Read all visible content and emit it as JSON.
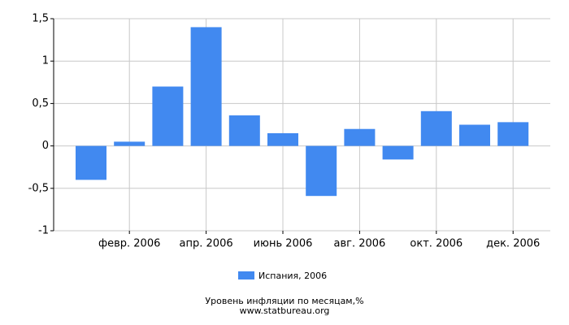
{
  "chart_data": {
    "type": "bar",
    "categories": [
      null,
      "февр. 2006",
      null,
      "апр. 2006",
      null,
      "июнь 2006",
      null,
      "авг. 2006",
      null,
      "окт. 2006",
      null,
      "дек. 2006"
    ],
    "series": [
      {
        "name": "Испания, 2006",
        "color": "#4189f0",
        "values": [
          -0.4,
          0.05,
          0.7,
          1.4,
          0.36,
          0.15,
          -0.59,
          0.2,
          -0.16,
          0.41,
          0.25,
          0.28
        ]
      }
    ],
    "ylim": [
      -1,
      1.5
    ],
    "yticks": [
      {
        "value": -1,
        "label": "-1"
      },
      {
        "value": -0.5,
        "label": "-0,5"
      },
      0,
      {
        "value": 0.5,
        "label": "0,5"
      },
      1,
      {
        "value": 1.5,
        "label": "1,5"
      }
    ],
    "grid": true,
    "footer": [
      "Уровень инфляции по месяцам,%",
      "www.statbureau.org"
    ]
  }
}
